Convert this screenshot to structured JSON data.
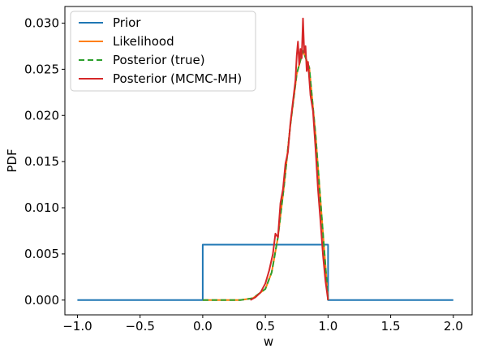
{
  "chart_data": {
    "type": "line",
    "xlabel": "w",
    "ylabel": "PDF",
    "xlim": [
      -1.1,
      2.15
    ],
    "ylim": [
      -0.0016,
      0.0318
    ],
    "xticks": [
      -1.0,
      -0.5,
      0.0,
      0.5,
      1.0,
      1.5,
      2.0
    ],
    "xtick_labels": [
      "−1.0",
      "−0.5",
      "0.0",
      "0.5",
      "1.0",
      "1.5",
      "2.0"
    ],
    "yticks": [
      0.0,
      0.005,
      0.01,
      0.015,
      0.02,
      0.025,
      0.03
    ],
    "ytick_labels": [
      "0.000",
      "0.005",
      "0.010",
      "0.015",
      "0.020",
      "0.025",
      "0.030"
    ],
    "grid": false,
    "legend_position": "upper-left",
    "series": [
      {
        "name": "Prior",
        "color": "#1f77b4",
        "style": "solid",
        "x": [
          -1.0,
          0.0,
          0.0,
          1.0,
          1.0,
          2.0
        ],
        "y": [
          0.0,
          0.0,
          0.006,
          0.006,
          0.0,
          0.0
        ]
      },
      {
        "name": "Likelihood",
        "color": "#ff7f0e",
        "style": "solid",
        "x": [
          0.0,
          0.3,
          0.4,
          0.5,
          0.55,
          0.6,
          0.65,
          0.7,
          0.75,
          0.8,
          0.85,
          0.9,
          0.95,
          1.0
        ],
        "y": [
          0.0,
          0.0,
          0.0002,
          0.0012,
          0.003,
          0.0068,
          0.0125,
          0.019,
          0.0245,
          0.027,
          0.0252,
          0.018,
          0.009,
          0.0
        ]
      },
      {
        "name": "Posterior (true)",
        "color": "#2ca02c",
        "style": "dashed",
        "x": [
          0.0,
          0.3,
          0.4,
          0.5,
          0.55,
          0.6,
          0.65,
          0.7,
          0.75,
          0.8,
          0.85,
          0.9,
          0.95,
          1.0
        ],
        "y": [
          0.0,
          0.0,
          0.0002,
          0.0012,
          0.003,
          0.0068,
          0.0125,
          0.019,
          0.0245,
          0.027,
          0.0252,
          0.018,
          0.009,
          0.0
        ]
      },
      {
        "name": "Posterior (MCMC-MH)",
        "color": "#d62728",
        "style": "solid",
        "x": [
          0.38,
          0.42,
          0.46,
          0.5,
          0.53,
          0.56,
          0.58,
          0.6,
          0.62,
          0.64,
          0.66,
          0.68,
          0.7,
          0.72,
          0.74,
          0.75,
          0.76,
          0.77,
          0.78,
          0.79,
          0.8,
          0.81,
          0.82,
          0.83,
          0.84,
          0.86,
          0.88,
          0.9,
          0.92,
          0.94,
          0.96,
          0.98,
          1.0
        ],
        "y": [
          0.0,
          0.0003,
          0.0008,
          0.0018,
          0.0032,
          0.005,
          0.0072,
          0.0068,
          0.0105,
          0.012,
          0.0148,
          0.016,
          0.0192,
          0.0215,
          0.0238,
          0.0265,
          0.028,
          0.0255,
          0.0272,
          0.0262,
          0.0305,
          0.0268,
          0.0275,
          0.0248,
          0.0258,
          0.0222,
          0.0205,
          0.0165,
          0.012,
          0.0085,
          0.0048,
          0.002,
          0.0
        ]
      }
    ]
  }
}
